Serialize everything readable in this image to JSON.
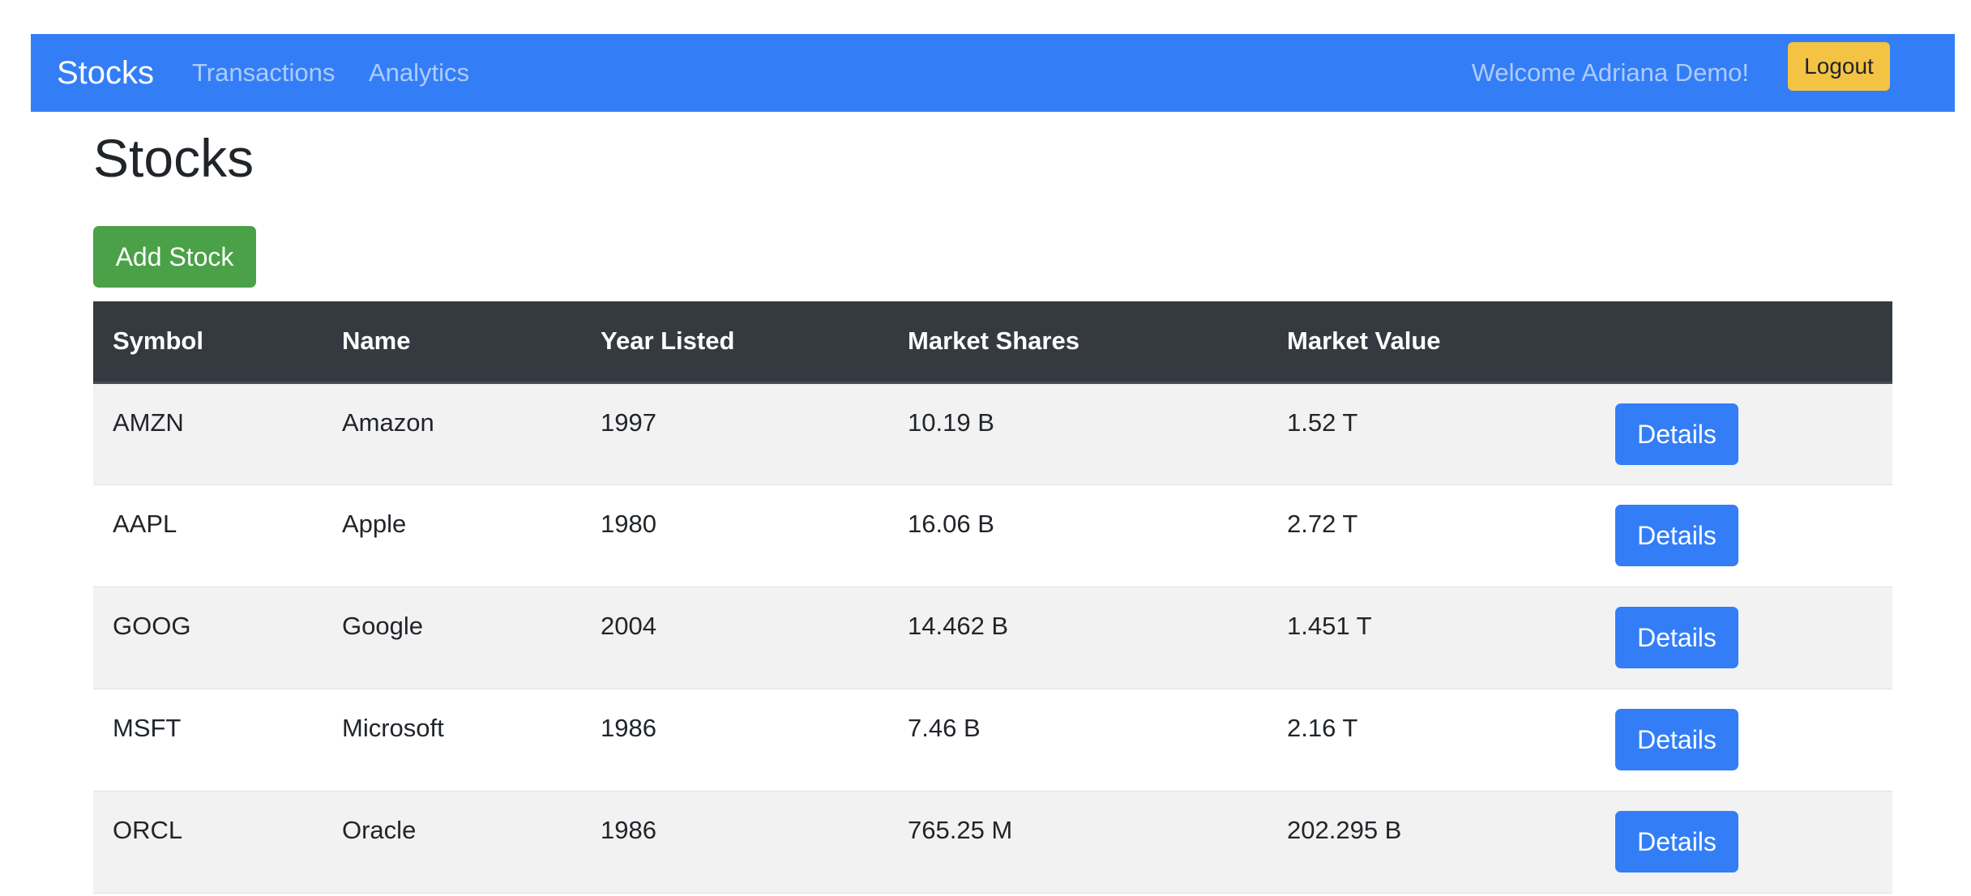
{
  "navbar": {
    "brand": "Stocks",
    "links": [
      "Transactions",
      "Analytics"
    ],
    "welcome": "Welcome Adriana Demo!",
    "logout_label": "Logout"
  },
  "page": {
    "title": "Stocks",
    "add_button_label": "Add Stock"
  },
  "table": {
    "columns": [
      "Symbol",
      "Name",
      "Year Listed",
      "Market Shares",
      "Market Value",
      ""
    ],
    "rows": [
      {
        "symbol": "AMZN",
        "name": "Amazon",
        "year": "1997",
        "shares": "10.19 B",
        "value": "1.52 T",
        "action": "Details"
      },
      {
        "symbol": "AAPL",
        "name": "Apple",
        "year": "1980",
        "shares": "16.06 B",
        "value": "2.72 T",
        "action": "Details"
      },
      {
        "symbol": "GOOG",
        "name": "Google",
        "year": "2004",
        "shares": "14.462 B",
        "value": "1.451 T",
        "action": "Details"
      },
      {
        "symbol": "MSFT",
        "name": "Microsoft",
        "year": "1986",
        "shares": "7.46 B",
        "value": "2.16 T",
        "action": "Details"
      },
      {
        "symbol": "ORCL",
        "name": "Oracle",
        "year": "1986",
        "shares": "765.25 M",
        "value": "202.295 B",
        "action": "Details"
      }
    ]
  },
  "colors": {
    "navbar": "#337ef7",
    "logout": "#f5c343",
    "add_button": "#4aa147",
    "details_button": "#337ef7",
    "table_header": "#353a40",
    "stripe": "#f2f2f2"
  }
}
